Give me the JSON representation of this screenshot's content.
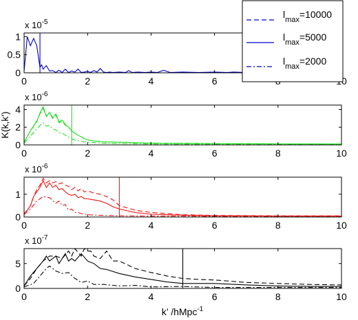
{
  "chart_data": [
    {
      "type": "line",
      "multiplier": "x 10",
      "exponent": "-5",
      "xlim": [
        0,
        10
      ],
      "ylim": [
        0,
        1.1
      ],
      "yticks": [
        "0",
        "0.5",
        "1"
      ],
      "xticks": [
        "0",
        "2",
        "4",
        "6",
        "8",
        "10"
      ],
      "color": "#0000cc",
      "vline": 0.5,
      "series": [
        {
          "name": "l_max=5000",
          "style": "solid",
          "x": [
            0,
            0.1,
            0.2,
            0.3,
            0.4,
            0.5,
            0.55,
            0.6,
            0.7,
            0.8,
            0.9,
            1.0,
            1.1,
            1.2,
            1.3,
            1.4,
            1.5,
            1.6,
            1.7,
            1.8,
            1.9,
            2.0,
            2.1,
            2.2,
            2.3,
            2.4,
            2.5,
            2.6,
            2.7,
            2.8,
            3.0,
            3.2,
            3.3,
            3.4,
            3.6,
            3.8,
            4.0,
            4.2,
            4.4,
            4.6,
            5.0,
            5.5,
            6.0,
            6.4,
            6.6,
            7.0,
            7.4,
            7.5,
            7.6,
            8.0,
            8.5,
            8.6,
            8.7,
            9.0,
            9.5,
            10.0
          ],
          "y": [
            0.05,
            1.0,
            0.75,
            0.95,
            0.75,
            0.15,
            0.22,
            0.1,
            0.2,
            0.05,
            0.06,
            0.01,
            0.07,
            0.01,
            0.1,
            0.01,
            0.05,
            0.02,
            0.1,
            0.01,
            0.02,
            0.04,
            0.01,
            0.06,
            0.02,
            0.12,
            0.02,
            0.01,
            0.02,
            0.01,
            0.02,
            0.01,
            0.06,
            0.01,
            0.02,
            0.01,
            0.02,
            0.01,
            0.07,
            0.01,
            0.02,
            0.01,
            0.02,
            0.01,
            0.02,
            0.01,
            0.01,
            0.06,
            0.01,
            0.01,
            0.01,
            0.05,
            0.01,
            0.01,
            0.01,
            0.01
          ]
        }
      ]
    },
    {
      "type": "line",
      "ylabel": "K(k,k')",
      "multiplier": "x 10",
      "exponent": "-6",
      "xlim": [
        0,
        10
      ],
      "ylim": [
        0,
        4.5
      ],
      "yticks": [
        "0",
        "2",
        "4"
      ],
      "xticks": [
        "0",
        "2",
        "4",
        "6",
        "8",
        "10"
      ],
      "color": "#22dd22",
      "vline": 1.5,
      "series": [
        {
          "name": "l_max=10000",
          "style": "dashed",
          "x": [
            0,
            0.2,
            0.4,
            0.5,
            0.6,
            0.7,
            0.8,
            0.9,
            1.0,
            1.1,
            1.2,
            1.3,
            1.4,
            1.5,
            1.6,
            1.7,
            1.8,
            1.9,
            2.0,
            2.2,
            2.5,
            3.0,
            3.5,
            4.0,
            5.0,
            6.0,
            7.0,
            8.0,
            9.0,
            10.0
          ],
          "y": [
            0.3,
            1.6,
            2.6,
            3.5,
            4.1,
            3.3,
            3.6,
            3.0,
            3.4,
            2.5,
            2.7,
            2.2,
            2.0,
            1.6,
            1.3,
            1.1,
            0.9,
            0.7,
            0.55,
            0.45,
            0.35,
            0.3,
            0.25,
            0.2,
            0.18,
            0.15,
            0.14,
            0.12,
            0.11,
            0.1
          ]
        },
        {
          "name": "l_max=5000",
          "style": "solid",
          "x": [
            0,
            0.2,
            0.4,
            0.5,
            0.6,
            0.7,
            0.8,
            0.9,
            1.0,
            1.1,
            1.2,
            1.3,
            1.4,
            1.5,
            1.6,
            1.7,
            1.8,
            1.9,
            2.0,
            2.2,
            2.5,
            3.0,
            3.5,
            4.0,
            5.0,
            6.0,
            7.0,
            8.0,
            9.0,
            10.0
          ],
          "y": [
            0.3,
            1.6,
            2.7,
            3.6,
            4.3,
            3.2,
            3.7,
            3.1,
            3.5,
            2.6,
            2.8,
            2.3,
            2.0,
            1.6,
            1.3,
            1.1,
            0.9,
            0.7,
            0.55,
            0.45,
            0.35,
            0.3,
            0.25,
            0.2,
            0.18,
            0.15,
            0.14,
            0.12,
            0.11,
            0.1
          ]
        },
        {
          "name": "l_max=2000",
          "style": "dashdot",
          "x": [
            0,
            0.2,
            0.4,
            0.5,
            0.6,
            0.7,
            0.8,
            0.9,
            1.0,
            1.1,
            1.2,
            1.3,
            1.4,
            1.5,
            1.6,
            1.8,
            2.0,
            2.5,
            3.0,
            4.0,
            5.0,
            6.0,
            7.0,
            8.0,
            9.0,
            10.0
          ],
          "y": [
            0.2,
            1.0,
            1.8,
            2.2,
            2.5,
            2.1,
            2.2,
            1.8,
            1.7,
            1.4,
            1.3,
            1.1,
            0.9,
            0.7,
            0.55,
            0.4,
            0.3,
            0.2,
            0.15,
            0.1,
            0.08,
            0.07,
            0.06,
            0.05,
            0.05,
            0.05
          ]
        }
      ]
    },
    {
      "type": "line",
      "multiplier": "x 10",
      "exponent": "-6",
      "xlim": [
        0,
        10
      ],
      "ylim": [
        0,
        1.75
      ],
      "yticks": [
        "0",
        "1"
      ],
      "xticks": [
        "0",
        "2",
        "4",
        "6",
        "8",
        "10"
      ],
      "color": "#ee1111",
      "vline": 3.0,
      "series": [
        {
          "name": "l_max=10000",
          "style": "dashed",
          "x": [
            0,
            0.1,
            0.2,
            0.3,
            0.4,
            0.5,
            0.6,
            0.7,
            0.8,
            0.9,
            1.0,
            1.1,
            1.2,
            1.3,
            1.4,
            1.5,
            1.6,
            1.7,
            1.8,
            1.9,
            2.0,
            2.2,
            2.4,
            2.6,
            2.8,
            3.0,
            3.5,
            4.0,
            4.5,
            5.0,
            6.0,
            7.0,
            8.0,
            9.0,
            10.0
          ],
          "y": [
            0.15,
            0.3,
            0.5,
            0.9,
            1.2,
            1.4,
            1.7,
            1.5,
            1.6,
            1.5,
            1.55,
            1.45,
            1.5,
            1.4,
            1.35,
            1.2,
            1.3,
            1.15,
            1.25,
            1.1,
            1.15,
            1.05,
            1.0,
            0.9,
            0.75,
            0.5,
            0.3,
            0.2,
            0.15,
            0.1,
            0.07,
            0.06,
            0.05,
            0.05,
            0.05
          ]
        },
        {
          "name": "l_max=5000",
          "style": "solid",
          "x": [
            0,
            0.1,
            0.2,
            0.3,
            0.4,
            0.5,
            0.6,
            0.7,
            0.8,
            0.9,
            1.0,
            1.1,
            1.2,
            1.3,
            1.4,
            1.5,
            1.6,
            1.7,
            1.8,
            1.9,
            2.0,
            2.2,
            2.4,
            2.6,
            2.8,
            3.0,
            3.5,
            4.0,
            4.5,
            5.0,
            6.0,
            7.0,
            8.0,
            9.0,
            10.0
          ],
          "y": [
            0.15,
            0.3,
            0.5,
            0.9,
            1.1,
            1.3,
            1.6,
            1.3,
            1.5,
            1.3,
            1.4,
            1.2,
            1.25,
            1.1,
            1.0,
            0.95,
            1.0,
            0.85,
            0.9,
            0.8,
            0.8,
            0.75,
            0.7,
            0.6,
            0.45,
            0.35,
            0.2,
            0.12,
            0.1,
            0.08,
            0.05,
            0.05,
            0.04,
            0.04,
            0.04
          ]
        },
        {
          "name": "l_max=2000",
          "style": "dashdot",
          "x": [
            0,
            0.2,
            0.4,
            0.6,
            0.8,
            1.0,
            1.1,
            1.2,
            1.3,
            1.4,
            1.5,
            1.6,
            1.7,
            1.8,
            2.0,
            2.5,
            3.0,
            4.0,
            5.0,
            6.0,
            7.0,
            8.0,
            9.0,
            10.0
          ],
          "y": [
            0.1,
            0.35,
            0.7,
            0.9,
            0.85,
            0.6,
            0.7,
            0.5,
            0.55,
            0.3,
            0.35,
            0.2,
            0.2,
            0.15,
            0.1,
            0.07,
            0.05,
            0.04,
            0.04,
            0.03,
            0.03,
            0.03,
            0.03,
            0.03
          ]
        }
      ]
    },
    {
      "type": "line",
      "xlabel": "k’ /hMpc",
      "xlabel_exponent": "-1",
      "multiplier": "x 10",
      "exponent": "-7",
      "xlim": [
        0,
        10
      ],
      "ylim": [
        0,
        8
      ],
      "yticks": [
        "0",
        "5"
      ],
      "xticks": [
        "0",
        "2",
        "4",
        "6",
        "8",
        "10"
      ],
      "color": "#000000",
      "vline": 5.0,
      "series": [
        {
          "name": "l_max=10000",
          "style": "dashed",
          "x": [
            0,
            0.2,
            0.4,
            0.6,
            0.8,
            1.0,
            1.2,
            1.4,
            1.5,
            1.6,
            1.8,
            1.9,
            2.0,
            2.1,
            2.2,
            2.4,
            2.6,
            2.8,
            3.0,
            3.5,
            4.0,
            4.5,
            5.0,
            5.5,
            6.0,
            7.0,
            8.0,
            9.0,
            10.0
          ],
          "y": [
            0.5,
            2.0,
            4.0,
            5.5,
            6.5,
            6.5,
            6.0,
            7.5,
            6.5,
            8.0,
            6.5,
            8.0,
            7.5,
            7.5,
            6.5,
            6.0,
            7.5,
            5.5,
            5.5,
            4.0,
            3.2,
            2.5,
            2.0,
            1.8,
            1.7,
            1.2,
            1.0,
            0.8,
            0.7
          ]
        },
        {
          "name": "l_max=5000",
          "style": "solid",
          "x": [
            0,
            0.2,
            0.4,
            0.6,
            0.7,
            0.8,
            1.0,
            1.1,
            1.2,
            1.3,
            1.4,
            1.5,
            1.6,
            1.8,
            2.0,
            2.2,
            2.4,
            2.6,
            3.0,
            3.5,
            4.0,
            4.5,
            5.0,
            6.0,
            7.0,
            8.0,
            9.0,
            10.0
          ],
          "y": [
            0.5,
            2.5,
            4.0,
            5.5,
            6.5,
            5.5,
            6.5,
            5.0,
            6.0,
            7.0,
            5.5,
            6.0,
            5.5,
            7.0,
            5.5,
            5.0,
            4.0,
            3.8,
            3.0,
            2.3,
            1.8,
            1.3,
            1.0,
            1.0,
            0.7,
            0.5,
            0.4,
            0.4
          ]
        },
        {
          "name": "l_max=2000",
          "style": "dashdot",
          "x": [
            0,
            0.3,
            0.5,
            0.7,
            0.8,
            1.0,
            1.2,
            1.4,
            1.6,
            1.8,
            2.0,
            2.2,
            2.5,
            3.0,
            3.5,
            4.0,
            5.0,
            6.0,
            7.0,
            8.0,
            9.0,
            10.0
          ],
          "y": [
            0.3,
            1.0,
            2.5,
            4.0,
            4.5,
            3.5,
            3.0,
            3.2,
            2.0,
            1.2,
            1.5,
            0.8,
            0.8,
            0.5,
            0.6,
            0.3,
            0.4,
            0.2,
            0.2,
            0.2,
            0.2,
            0.2
          ]
        }
      ]
    }
  ],
  "legend": [
    {
      "base": "l",
      "sub": "max",
      "value": "=10000",
      "style": "dashed"
    },
    {
      "base": "l",
      "sub": "max",
      "value": "=5000",
      "style": "solid"
    },
    {
      "base": "l",
      "sub": "max",
      "value": "=2000",
      "style": "dashdot"
    }
  ]
}
